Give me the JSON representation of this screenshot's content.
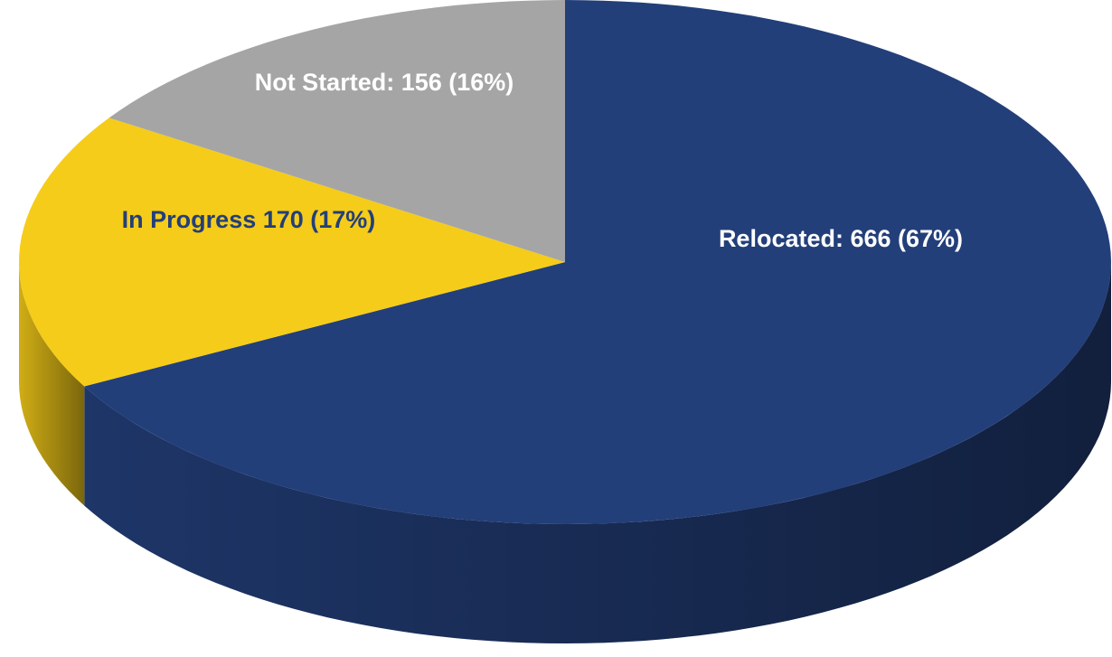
{
  "chart_data": {
    "type": "pie",
    "values": [
      666,
      170,
      156
    ],
    "value_labels": [
      "Relocated: 666 (67%)",
      "In Progress 170 (17%)",
      "Not Started: 156 (16%)"
    ],
    "colors": [
      "#233f7a",
      "#f5cc19",
      "#a5a5a5"
    ]
  }
}
